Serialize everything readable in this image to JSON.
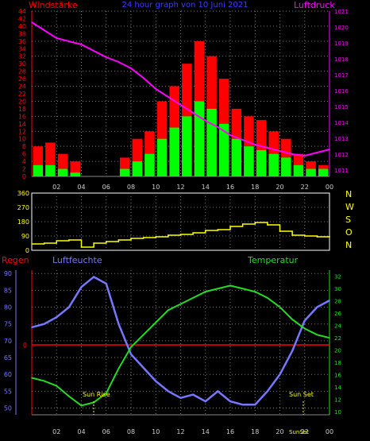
{
  "chart_data": [
    {
      "type": "bar",
      "title": "24 hour graph von 10 Juni 2021",
      "left_axis_label": "Windstärke",
      "right_axis_label": "Luftdruck",
      "x_ticks": [
        "02",
        "04",
        "06",
        "08",
        "10",
        "12",
        "14",
        "16",
        "18",
        "20",
        "22",
        "00"
      ],
      "left_ticks": [
        "0",
        "2",
        "4",
        "6",
        "8",
        "10",
        "12",
        "14",
        "16",
        "18",
        "20",
        "22",
        "24",
        "26",
        "28",
        "30",
        "32",
        "34",
        "36",
        "38",
        "40",
        "42",
        "44"
      ],
      "right_ticks": [
        "1011",
        "1012",
        "1013",
        "1014",
        "1015",
        "1016",
        "1017",
        "1018",
        "1019",
        "1020",
        "1021"
      ],
      "ylim_left": [
        0,
        44
      ],
      "ylim_right": [
        1010.6,
        1021
      ],
      "series": [
        {
          "name": "Windstärke",
          "color": "#ff0000",
          "kind": "bar",
          "x": [
            0.0,
            1.0,
            2.0,
            3.0,
            4.0,
            5.0,
            6.0,
            7.0,
            8.0,
            9.0,
            10.0,
            11.0,
            12.0,
            13.0,
            14.0,
            15.0,
            16.0,
            17.0,
            18.0,
            19.0,
            20.0,
            21.0,
            22.0,
            23.0
          ],
          "values": [
            8,
            9,
            6,
            4,
            0,
            0,
            0,
            5,
            10,
            12,
            20,
            24,
            30,
            36,
            32,
            26,
            18,
            16,
            15,
            12,
            10,
            6,
            4,
            3
          ]
        },
        {
          "name": "Windstärke",
          "color": "#00ff00",
          "kind": "bar",
          "x": [
            0.0,
            1.0,
            2.0,
            3.0,
            4.0,
            5.0,
            6.0,
            7.0,
            8.0,
            9.0,
            10.0,
            11.0,
            12.0,
            13.0,
            14.0,
            15.0,
            16.0,
            17.0,
            18.0,
            19.0,
            20.0,
            21.0,
            22.0,
            23.0
          ],
          "values": [
            3,
            3,
            2,
            1,
            0,
            0,
            0,
            2,
            4,
            6,
            10,
            13,
            16,
            20,
            18,
            14,
            10,
            8,
            7,
            6,
            5,
            3,
            2,
            2
          ]
        },
        {
          "name": "Luftdruck",
          "color": "#ff00ff",
          "kind": "line",
          "x": [
            0,
            1,
            2,
            3,
            4,
            5,
            6,
            7,
            8,
            9,
            10,
            11,
            12,
            13,
            14,
            15,
            16,
            17,
            18,
            19,
            20,
            21,
            22,
            23,
            24
          ],
          "values": [
            1020.3,
            1019.8,
            1019.3,
            1019.1,
            1018.9,
            1018.5,
            1018.1,
            1017.8,
            1017.4,
            1016.8,
            1016.1,
            1015.6,
            1015.1,
            1014.6,
            1014.1,
            1013.7,
            1013.2,
            1012.9,
            1012.6,
            1012.4,
            1012.2,
            1012.0,
            1011.9,
            1012.1,
            1012.3
          ]
        }
      ]
    },
    {
      "type": "line",
      "right_labels": [
        "N",
        "W",
        "S",
        "O",
        "N"
      ],
      "left_ticks": [
        "0",
        "90",
        "180",
        "270",
        "360"
      ],
      "ylim": [
        0,
        360
      ],
      "series": [
        {
          "name": "Windrichtung",
          "color": "#ffff00",
          "x": [
            0,
            1,
            2,
            3,
            4,
            5,
            6,
            7,
            8,
            9,
            10,
            11,
            12,
            13,
            14,
            15,
            16,
            17,
            18,
            19,
            20,
            21,
            22,
            23,
            24
          ],
          "values": [
            40,
            45,
            60,
            65,
            20,
            45,
            55,
            65,
            75,
            80,
            85,
            95,
            100,
            110,
            125,
            130,
            150,
            165,
            175,
            160,
            120,
            95,
            90,
            85,
            88
          ]
        }
      ]
    },
    {
      "type": "line",
      "labels": {
        "regen": "Regen",
        "luftfeuchte": "Luftfeuchte",
        "temperatur": "Temperatur",
        "sun_rise": "Sun Rise",
        "sun_set": "Sun Set",
        "sun_set_bottom": "SunSet"
      },
      "left_ticks_regen": [
        "0"
      ],
      "left_ticks_humidity": [
        "50",
        "55",
        "60",
        "65",
        "70",
        "75",
        "80",
        "85",
        "90"
      ],
      "right_ticks": [
        "10",
        "12",
        "14",
        "16",
        "18",
        "20",
        "22",
        "24",
        "26",
        "28",
        "30",
        "32"
      ],
      "x_ticks": [
        "02",
        "04",
        "06",
        "08",
        "10",
        "12",
        "14",
        "16",
        "18",
        "20",
        "22",
        "00"
      ],
      "humidity_ylim": [
        48,
        91
      ],
      "temperature_ylim": [
        9.5,
        33
      ],
      "series": [
        {
          "name": "Luftfeuchte",
          "color": "#7777ff",
          "x": [
            0,
            1,
            2,
            3,
            4,
            5,
            6,
            7,
            8,
            9,
            10,
            11,
            12,
            13,
            14,
            15,
            16,
            17,
            18,
            19,
            20,
            21,
            22,
            23,
            24
          ],
          "values": [
            74,
            75,
            77,
            80,
            86,
            89,
            87,
            75,
            66,
            62,
            58,
            55,
            53,
            54,
            52,
            55,
            52,
            51,
            51,
            55,
            60,
            67,
            76,
            80,
            82
          ]
        },
        {
          "name": "Temperatur",
          "color": "#22dd22",
          "x": [
            0,
            1,
            2,
            3,
            4,
            5,
            6,
            7,
            8,
            9,
            10,
            11,
            12,
            13,
            14,
            15,
            16,
            17,
            18,
            19,
            20,
            21,
            22,
            23,
            24
          ],
          "values": [
            15.5,
            15.0,
            14.2,
            12.5,
            11.0,
            11.5,
            13.0,
            17.0,
            20.5,
            22.5,
            24.5,
            26.5,
            27.5,
            28.5,
            29.5,
            30.0,
            30.5,
            30.0,
            29.5,
            28.5,
            27.0,
            25.0,
            23.5,
            22.5,
            22.0
          ]
        },
        {
          "name": "Regen",
          "color": "#ff0000",
          "x": [
            0,
            24
          ],
          "values": [
            0,
            0
          ]
        }
      ]
    }
  ]
}
